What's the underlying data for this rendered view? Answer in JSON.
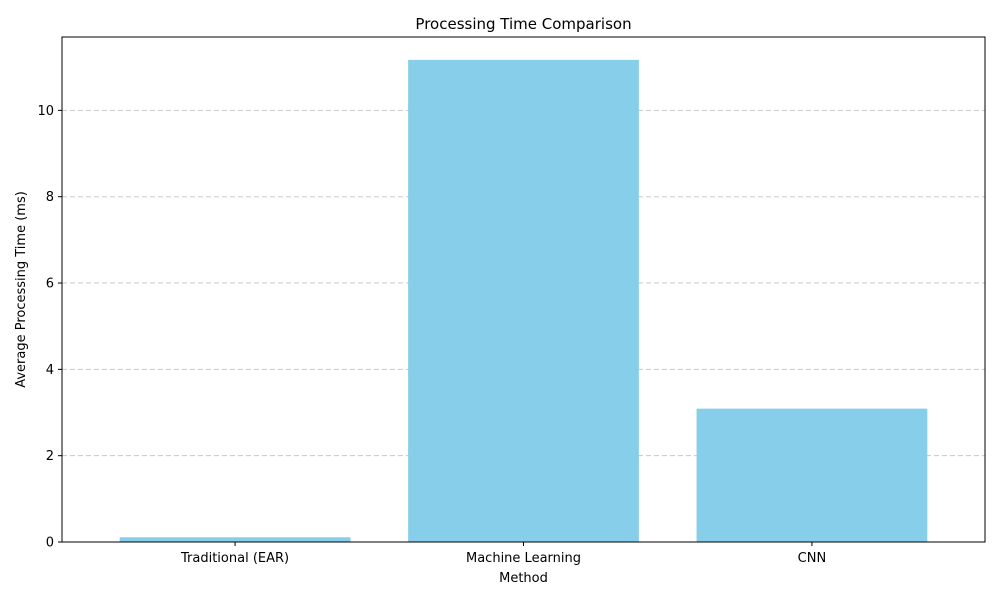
{
  "chart_data": {
    "type": "bar",
    "title": "Processing Time Comparison",
    "xlabel": "Method",
    "ylabel": "Average Processing Time (ms)",
    "categories": [
      "Traditional (EAR)",
      "Machine Learning",
      "CNN"
    ],
    "values": [
      0.11,
      11.17,
      3.09
    ],
    "ylim": [
      0,
      11.7
    ],
    "yticks": [
      0,
      2,
      4,
      6,
      8,
      10
    ],
    "grid": {
      "axis": "y",
      "style": "dashed",
      "color": "#c8c8c8"
    },
    "bar_color": "#87CEEB",
    "legend": "none"
  }
}
